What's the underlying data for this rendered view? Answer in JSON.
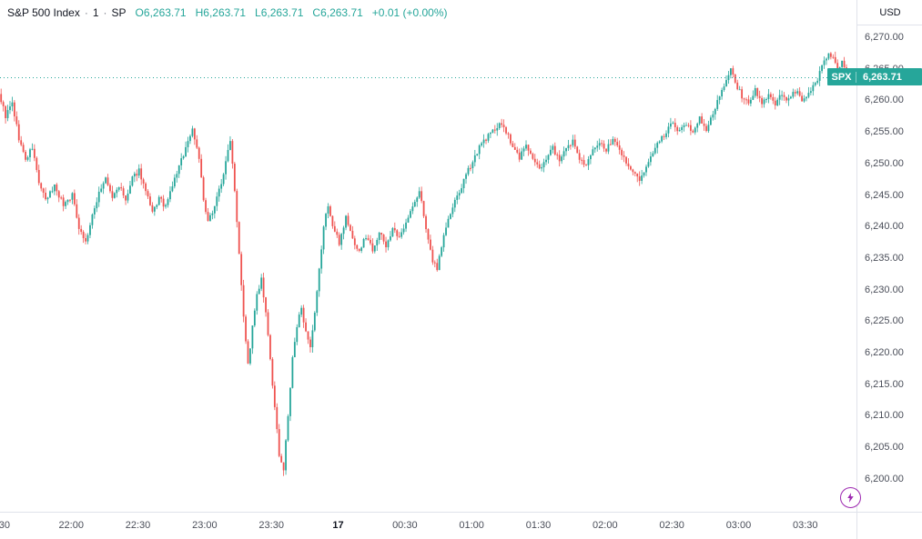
{
  "header": {
    "symbol_title": "S&P 500 Index",
    "separator": "·",
    "interval": "1",
    "source": "SP",
    "ohlc": [
      {
        "label": "O",
        "value": "6,263.71"
      },
      {
        "label": "H",
        "value": "6,263.71"
      },
      {
        "label": "L",
        "value": "6,263.71"
      },
      {
        "label": "C",
        "value": "6,263.71"
      }
    ],
    "change": "+0.01 (+0.00%)"
  },
  "price_scale": {
    "currency_label": "USD",
    "price_label": {
      "symbol": "SPX",
      "value": "6,263.71"
    }
  },
  "colors": {
    "up": "#26a69a",
    "down": "#ef5350",
    "flash": "#9c27b0",
    "axis_line": "#e0e3eb",
    "text": "#131722"
  },
  "icons": {
    "flash": "lightning-bolt-icon"
  },
  "chart_data": {
    "type": "candlestick",
    "title": "S&P 500 Index · 1 minute · SP",
    "grid": "off",
    "legend_position": "top-left",
    "last_price": 6263.71,
    "open_price": 6261,
    "candle_count": 381,
    "seed": 9,
    "noise": 0.9,
    "wick": 0.9,
    "y_axis": {
      "min": 6194.8,
      "max": 6275.9,
      "tick_values": [
        6270,
        6265,
        6260,
        6255,
        6250,
        6245,
        6240,
        6235,
        6230,
        6225,
        6220,
        6215,
        6210,
        6205,
        6200
      ],
      "tick_labels": [
        "6,270.00",
        "6,265.00",
        "6,260.00",
        "6,255.00",
        "6,250.00",
        "6,245.00",
        "6,240.00",
        "6,235.00",
        "6,230.00",
        "6,225.00",
        "6,220.00",
        "6,215.00",
        "6,210.00",
        "6,205.00",
        "6,200.00"
      ]
    },
    "x_axis": {
      "total_minutes": 385,
      "ticks": [
        {
          "t": 2,
          "label": "30",
          "emphasis": false
        },
        {
          "t": 32,
          "label": "22:00",
          "emphasis": false
        },
        {
          "t": 62,
          "label": "22:30",
          "emphasis": false
        },
        {
          "t": 92,
          "label": "23:00",
          "emphasis": false
        },
        {
          "t": 122,
          "label": "23:30",
          "emphasis": false
        },
        {
          "t": 152,
          "label": "17",
          "emphasis": true
        },
        {
          "t": 182,
          "label": "00:30",
          "emphasis": false
        },
        {
          "t": 212,
          "label": "01:00",
          "emphasis": false
        },
        {
          "t": 242,
          "label": "01:30",
          "emphasis": false
        },
        {
          "t": 272,
          "label": "02:00",
          "emphasis": false
        },
        {
          "t": 302,
          "label": "02:30",
          "emphasis": false
        },
        {
          "t": 332,
          "label": "03:00",
          "emphasis": false
        },
        {
          "t": 362,
          "label": "03:30",
          "emphasis": false
        }
      ]
    },
    "anchors": [
      [
        0,
        6260
      ],
      [
        2,
        6257.5
      ],
      [
        5,
        6259.5
      ],
      [
        8,
        6254
      ],
      [
        11,
        6250.5
      ],
      [
        14,
        6252.5
      ],
      [
        17,
        6247
      ],
      [
        20,
        6244
      ],
      [
        24,
        6246.5
      ],
      [
        28,
        6243.5
      ],
      [
        32,
        6245
      ],
      [
        35,
        6240
      ],
      [
        38,
        6237.5
      ],
      [
        41,
        6241.5
      ],
      [
        44,
        6245.5
      ],
      [
        47,
        6247.5
      ],
      [
        50,
        6244.5
      ],
      [
        53,
        6246.5
      ],
      [
        56,
        6244
      ],
      [
        59,
        6247.5
      ],
      [
        62,
        6249
      ],
      [
        65,
        6245.5
      ],
      [
        68,
        6242
      ],
      [
        71,
        6244.5
      ],
      [
        74,
        6243
      ],
      [
        77,
        6246.5
      ],
      [
        80,
        6249.5
      ],
      [
        83,
        6252.5
      ],
      [
        86,
        6255.5
      ],
      [
        89,
        6251
      ],
      [
        91,
        6244
      ],
      [
        93,
        6240.5
      ],
      [
        96,
        6243.5
      ],
      [
        99,
        6247
      ],
      [
        101,
        6250
      ],
      [
        103,
        6254
      ],
      [
        105,
        6246
      ],
      [
        107,
        6236
      ],
      [
        109,
        6226
      ],
      [
        111,
        6218
      ],
      [
        113,
        6224
      ],
      [
        115,
        6229
      ],
      [
        117,
        6231.5
      ],
      [
        119,
        6226
      ],
      [
        121,
        6219
      ],
      [
        123,
        6211
      ],
      [
        125,
        6204
      ],
      [
        127,
        6201.5
      ],
      [
        129,
        6210
      ],
      [
        131,
        6219
      ],
      [
        133,
        6224
      ],
      [
        135,
        6227.5
      ],
      [
        137,
        6223
      ],
      [
        139,
        6220.5
      ],
      [
        141,
        6226
      ],
      [
        143,
        6233
      ],
      [
        145,
        6240
      ],
      [
        147,
        6243.5
      ],
      [
        149,
        6240
      ],
      [
        152,
        6237.5
      ],
      [
        155,
        6241.5
      ],
      [
        158,
        6238
      ],
      [
        161,
        6236
      ],
      [
        164,
        6238.5
      ],
      [
        167,
        6236.5
      ],
      [
        170,
        6239
      ],
      [
        173,
        6237
      ],
      [
        176,
        6239.5
      ],
      [
        179,
        6238
      ],
      [
        182,
        6241
      ],
      [
        185,
        6243
      ],
      [
        188,
        6245.5
      ],
      [
        190,
        6242
      ],
      [
        192,
        6237.5
      ],
      [
        194,
        6234.5
      ],
      [
        196,
        6233.5
      ],
      [
        198,
        6237
      ],
      [
        200,
        6240
      ],
      [
        203,
        6243
      ],
      [
        206,
        6245.5
      ],
      [
        209,
        6248
      ],
      [
        212,
        6250.5
      ],
      [
        215,
        6252.5
      ],
      [
        218,
        6254
      ],
      [
        221,
        6255
      ],
      [
        224,
        6256.5
      ],
      [
        227,
        6255
      ],
      [
        230,
        6252.5
      ],
      [
        233,
        6251
      ],
      [
        236,
        6253
      ],
      [
        239,
        6250.5
      ],
      [
        242,
        6249
      ],
      [
        245,
        6251
      ],
      [
        248,
        6252.5
      ],
      [
        251,
        6250.5
      ],
      [
        254,
        6252
      ],
      [
        257,
        6253.5
      ],
      [
        260,
        6251
      ],
      [
        263,
        6249.5
      ],
      [
        266,
        6252
      ],
      [
        269,
        6253.5
      ],
      [
        272,
        6252
      ],
      [
        275,
        6254
      ],
      [
        278,
        6252.5
      ],
      [
        281,
        6250
      ],
      [
        284,
        6248.5
      ],
      [
        287,
        6247.5
      ],
      [
        290,
        6249.5
      ],
      [
        293,
        6251.5
      ],
      [
        296,
        6253.5
      ],
      [
        299,
        6255
      ],
      [
        302,
        6256.5
      ],
      [
        305,
        6255
      ],
      [
        308,
        6256.5
      ],
      [
        311,
        6255
      ],
      [
        314,
        6257
      ],
      [
        317,
        6255.5
      ],
      [
        320,
        6258
      ],
      [
        323,
        6260.5
      ],
      [
        326,
        6263
      ],
      [
        328,
        6265.2
      ],
      [
        330,
        6263
      ],
      [
        333,
        6260.5
      ],
      [
        336,
        6259.5
      ],
      [
        339,
        6261.5
      ],
      [
        342,
        6259.5
      ],
      [
        345,
        6261
      ],
      [
        348,
        6259.5
      ],
      [
        351,
        6261
      ],
      [
        354,
        6260
      ],
      [
        357,
        6261.5
      ],
      [
        360,
        6260
      ],
      [
        363,
        6261
      ],
      [
        366,
        6262.5
      ],
      [
        369,
        6265.5
      ],
      [
        372,
        6267.8
      ],
      [
        374,
        6266.5
      ],
      [
        376,
        6264.8
      ],
      [
        378,
        6266.3
      ],
      [
        380,
        6263.71
      ]
    ]
  }
}
